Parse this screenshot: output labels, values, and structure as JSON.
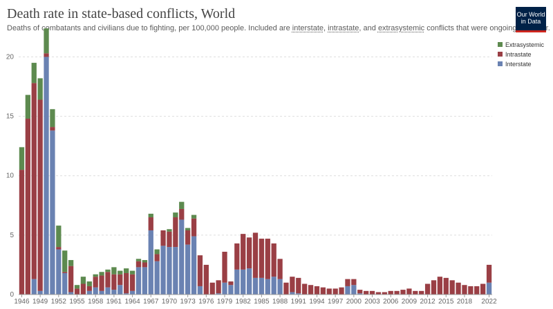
{
  "header": {
    "title": "Death rate in state-based conflicts, World",
    "subtitle_parts": [
      "Deaths of combatants and civilians due to fighting, per 100,000 people. Included are ",
      "interstate",
      ", ",
      "intrastate",
      ", and ",
      "extrasystemic",
      " conflicts that were ongoing that year."
    ],
    "logo_line1": "Our World",
    "logo_line2": "in Data"
  },
  "legend": [
    {
      "label": "Extrasystemic",
      "color": "#5d8a4f"
    },
    {
      "label": "Intrastate",
      "color": "#9a3f45"
    },
    {
      "label": "Interstate",
      "color": "#6a82b2"
    }
  ],
  "chart_data": {
    "type": "bar",
    "stacked": true,
    "grid": true,
    "legend_position": "top-right",
    "ylim": [
      0,
      22
    ],
    "y_ticks": [
      "0",
      "5",
      "10",
      "15",
      "20"
    ],
    "x_ticks": [
      "1946",
      "1949",
      "1952",
      "1955",
      "1958",
      "1961",
      "1964",
      "1967",
      "1970",
      "1973",
      "1976",
      "1979",
      "1982",
      "1985",
      "1988",
      "1991",
      "1994",
      "1997",
      "2000",
      "2003",
      "2006",
      "2009",
      "2012",
      "2015",
      "2018",
      "2022"
    ],
    "categories": [
      "1946",
      "1947",
      "1948",
      "1949",
      "1950",
      "1951",
      "1952",
      "1953",
      "1954",
      "1955",
      "1956",
      "1957",
      "1958",
      "1959",
      "1960",
      "1961",
      "1962",
      "1963",
      "1964",
      "1965",
      "1966",
      "1967",
      "1968",
      "1969",
      "1970",
      "1971",
      "1972",
      "1973",
      "1974",
      "1975",
      "1976",
      "1977",
      "1978",
      "1979",
      "1980",
      "1981",
      "1982",
      "1983",
      "1984",
      "1985",
      "1986",
      "1987",
      "1988",
      "1989",
      "1990",
      "1991",
      "1992",
      "1993",
      "1994",
      "1995",
      "1996",
      "1997",
      "1998",
      "1999",
      "2000",
      "2001",
      "2002",
      "2003",
      "2004",
      "2005",
      "2006",
      "2007",
      "2008",
      "2009",
      "2010",
      "2011",
      "2012",
      "2013",
      "2014",
      "2015",
      "2016",
      "2017",
      "2018",
      "2019",
      "2020",
      "2021",
      "2022"
    ],
    "series": [
      {
        "name": "Interstate",
        "color": "#6a82b2",
        "values": [
          0,
          0,
          1.3,
          0.3,
          20,
          13.8,
          3.8,
          1.8,
          0.2,
          0,
          0,
          0.3,
          0.6,
          0.3,
          0.6,
          0.4,
          0.8,
          0.1,
          0.3,
          2.3,
          2.3,
          5.4,
          2.8,
          4.1,
          4,
          4,
          6.3,
          4.2,
          4.9,
          0.7,
          0,
          0,
          0.1,
          1,
          0.8,
          2.1,
          2.1,
          2.2,
          1.4,
          1.4,
          1.3,
          1.5,
          1.3,
          0,
          0.2,
          0.1,
          0,
          0,
          0,
          0,
          0,
          0,
          0,
          0.7,
          0.8,
          0.1,
          0,
          0,
          0,
          0,
          0,
          0,
          0,
          0,
          0,
          0,
          0,
          0,
          0,
          0,
          0,
          0,
          0,
          0,
          0,
          0,
          1.0
        ]
      },
      {
        "name": "Intrastate",
        "color": "#9a3f45",
        "values": [
          10.5,
          14.8,
          16.5,
          16.1,
          0.3,
          0.3,
          0.2,
          0.1,
          2.2,
          0.5,
          0.9,
          0.4,
          0.9,
          1.3,
          1.3,
          1.3,
          0.9,
          1.7,
          1.4,
          0.5,
          0.4,
          1.1,
          0.6,
          1.3,
          1.3,
          2.5,
          0.9,
          1.2,
          1.5,
          2.6,
          2.5,
          1.0,
          1.1,
          2.6,
          0.3,
          2.2,
          3.0,
          2.6,
          3.8,
          3.3,
          3.4,
          2.8,
          1.7,
          1.0,
          1.3,
          1.3,
          0.9,
          0.8,
          0.7,
          0.6,
          0.5,
          0.5,
          0.6,
          0.6,
          0.5,
          0.3,
          0.3,
          0.3,
          0.2,
          0.2,
          0.3,
          0.3,
          0.4,
          0.5,
          0.3,
          0.3,
          0.9,
          1.2,
          1.5,
          1.4,
          1.2,
          1.0,
          0.8,
          0.7,
          0.7,
          0.9,
          1.5
        ]
      },
      {
        "name": "Extrasystemic",
        "color": "#5d8a4f",
        "values": [
          1.9,
          2.0,
          1.7,
          1.8,
          2.1,
          1.5,
          1.8,
          1.8,
          0.5,
          0.3,
          0.6,
          0.4,
          0.2,
          0.3,
          0.2,
          0.6,
          0.3,
          0.4,
          0.3,
          0.2,
          0.2,
          0.3,
          0.4,
          0,
          0.2,
          0.4,
          0.6,
          0.2,
          0.3,
          0,
          0,
          0,
          0,
          0,
          0,
          0,
          0,
          0,
          0,
          0,
          0,
          0,
          0,
          0,
          0,
          0,
          0,
          0,
          0,
          0,
          0,
          0,
          0,
          0,
          0,
          0,
          0,
          0,
          0,
          0,
          0,
          0,
          0,
          0,
          0,
          0,
          0,
          0,
          0,
          0,
          0,
          0,
          0,
          0,
          0,
          0,
          0
        ]
      }
    ]
  }
}
